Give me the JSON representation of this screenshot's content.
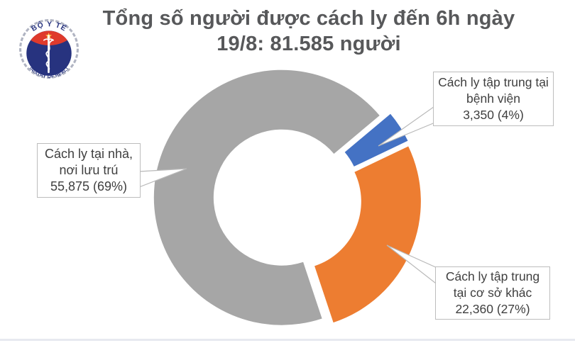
{
  "header": {
    "title_line1": "Tổng số người được cách ly đến 6h ngày",
    "title_line2": "19/8: 81.585 người"
  },
  "logo": {
    "top_text": "BỘ Y TẾ",
    "bottom_text": "MINISTRY OF HEALTH",
    "colors": {
      "navy": "#27337f",
      "red": "#df3a2c",
      "star": "#ffd34d",
      "wreath": "#b0b4c2",
      "rod": "#ffffff"
    }
  },
  "chart_data": {
    "type": "pie",
    "subtype": "donut",
    "title": "Tổng số người được cách ly đến 6h ngày 19/8: 81.585 người",
    "total_value": 81585,
    "start_angle_deg": 50,
    "hole_ratio": 0.53,
    "legend_position": "none",
    "series": [
      {
        "name": "Cách ly tập trung tại bệnh viện",
        "value": 3350,
        "pct": 4,
        "color": "#4472C4"
      },
      {
        "name": "Cách ly tập trung tại cơ sở khác",
        "value": 22360,
        "pct": 27,
        "color": "#ED7D31"
      },
      {
        "name": "Cách ly tại nhà, nơi lưu trú",
        "value": 55875,
        "pct": 69,
        "color": "#A6A6A6"
      }
    ]
  },
  "labels": {
    "home": {
      "lines": [
        "Cách ly tại nhà,",
        "nơi lưu trú",
        "55,875 (69%)"
      ]
    },
    "hospital": {
      "lines": [
        "Cách ly tập trung tại",
        "bệnh viện",
        "3,350 (4%)"
      ]
    },
    "other": {
      "lines": [
        "Cách ly tập trung",
        "tại cơ sở khác",
        "22,360 (27%)"
      ]
    }
  }
}
